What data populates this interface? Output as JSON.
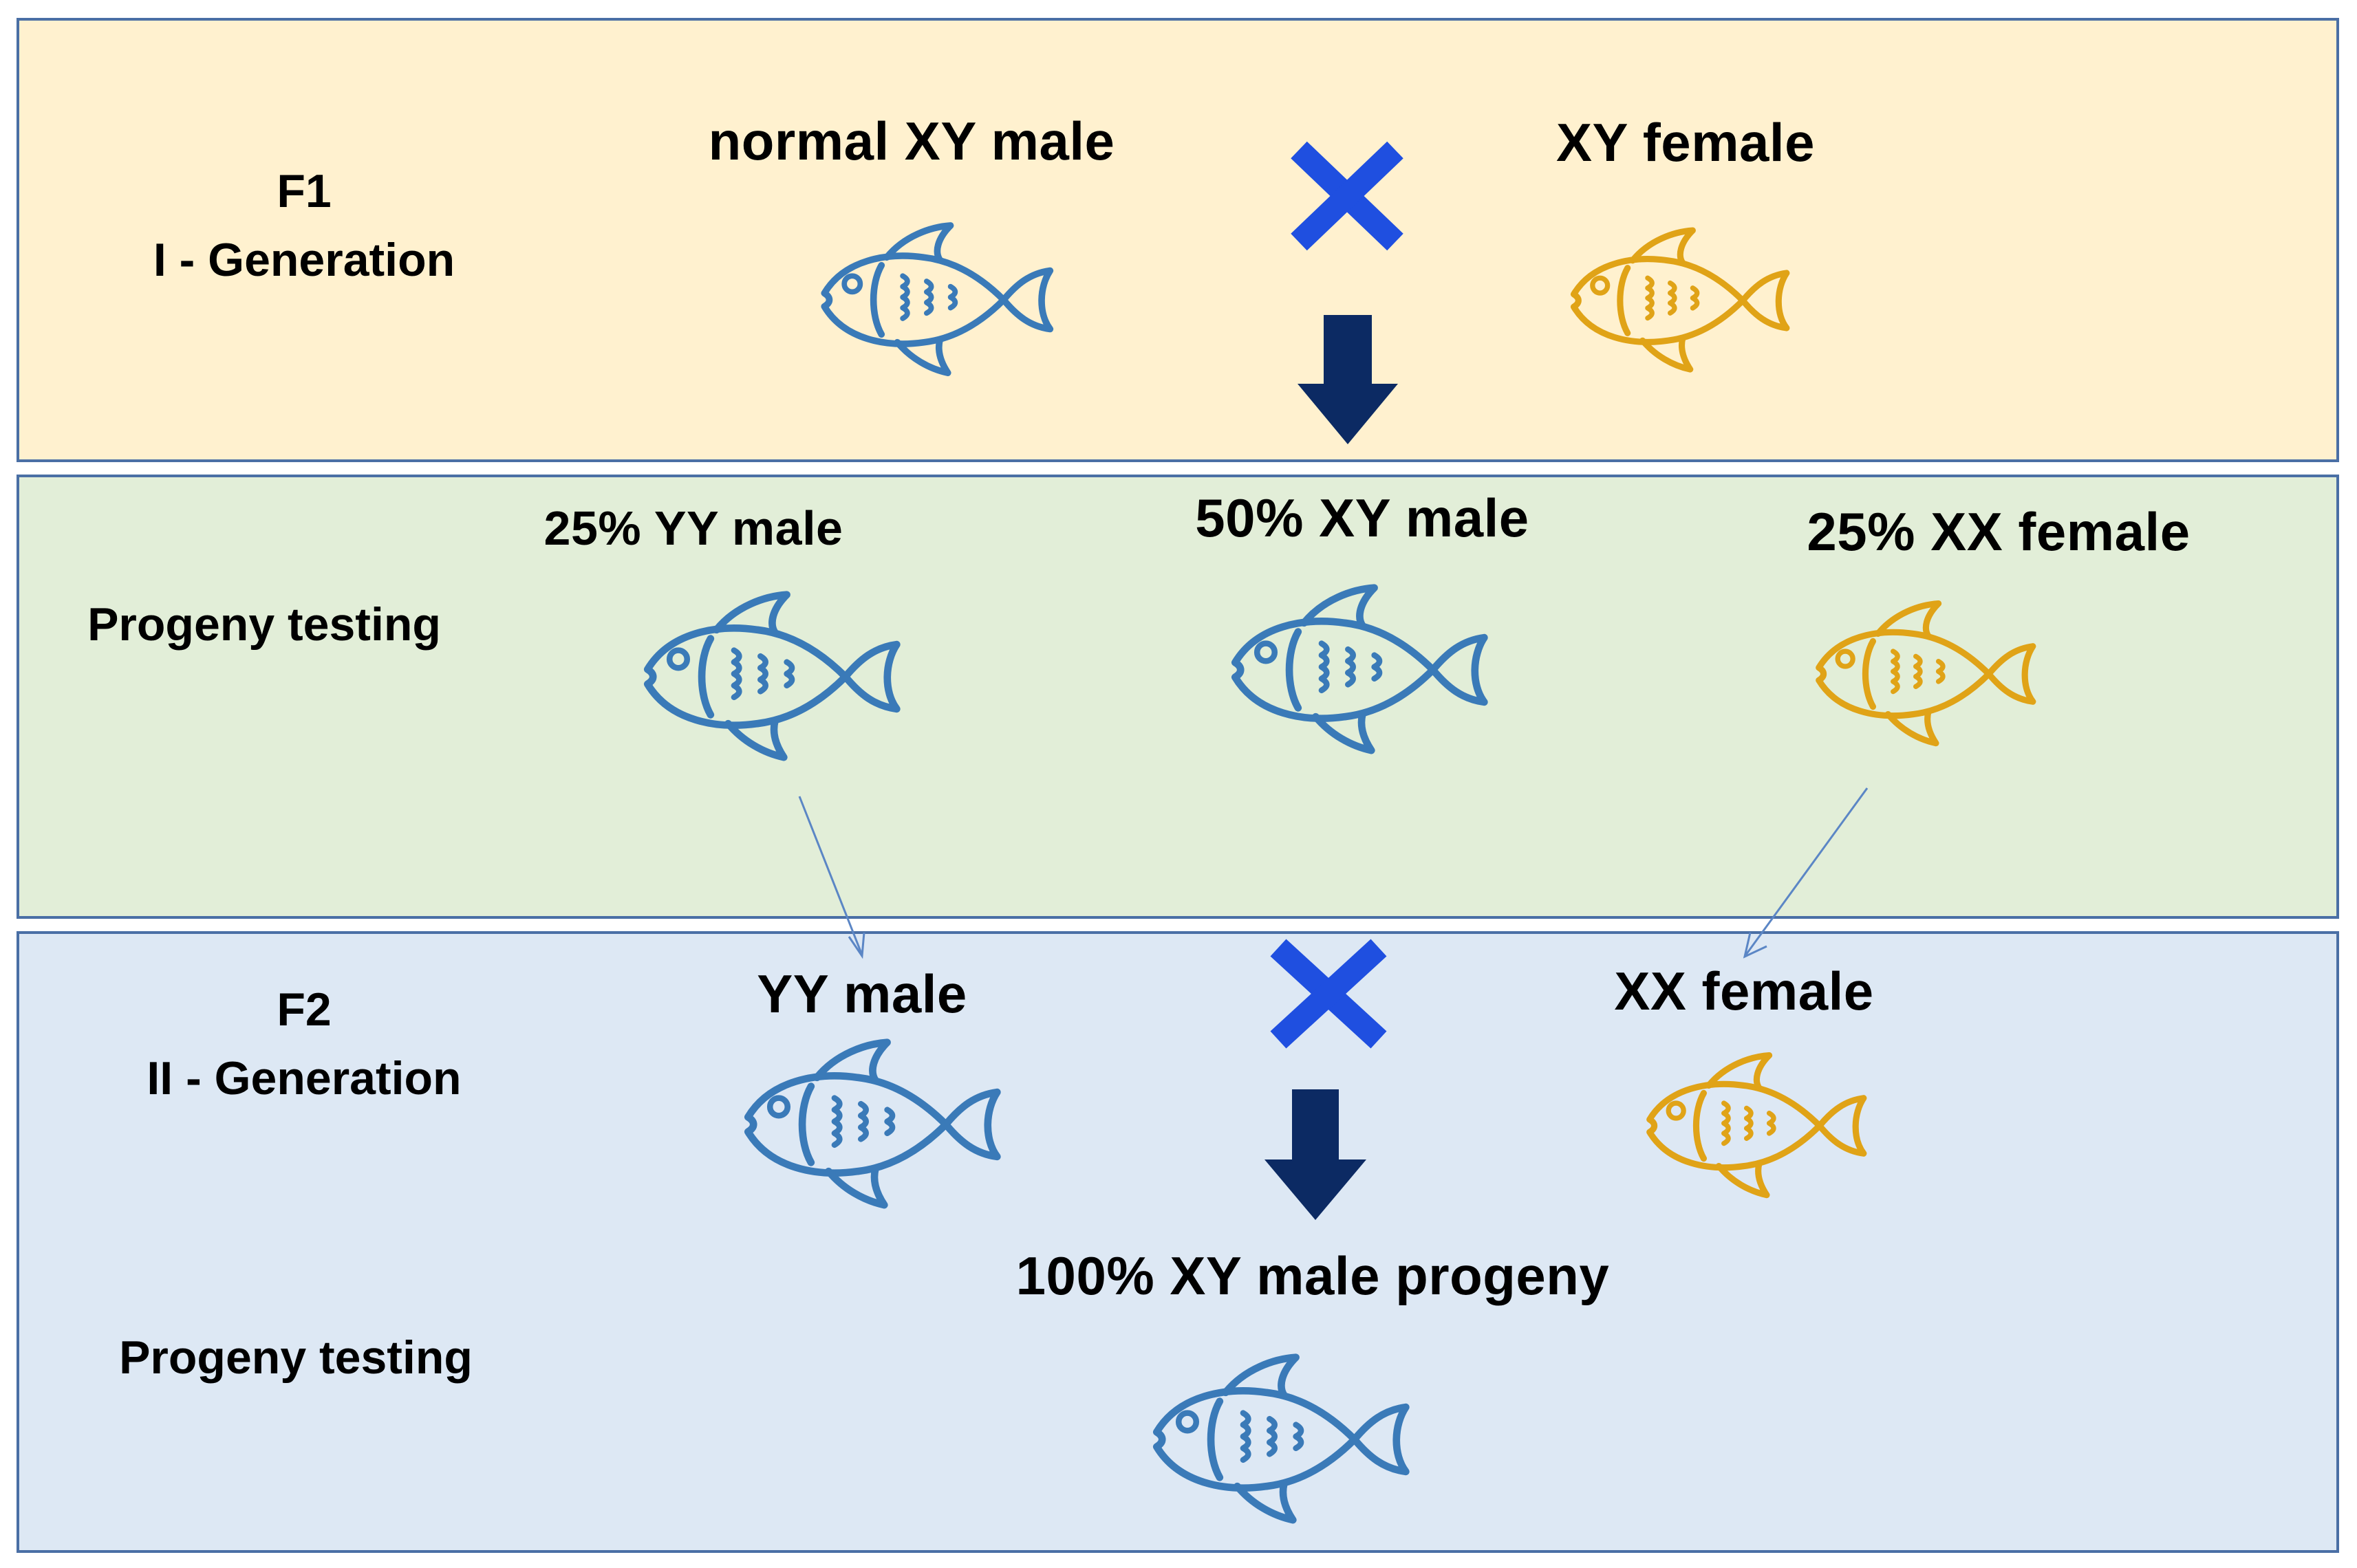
{
  "colors": {
    "male_fish": "#3a7ab8",
    "female_fish": "#e0a317",
    "cross_mark": "#1f4fe0",
    "arrow": "#0c2a63",
    "panel_border": "#4a6fa5"
  },
  "f1": {
    "label_gen": "F1",
    "label_sub": "I - Generation",
    "male_label": "normal XY male",
    "female_label": "XY female",
    "cross_icon": "cross-icon",
    "arrow_icon": "down-arrow-icon"
  },
  "progeny": {
    "label": "Progeny testing",
    "yy_label": "25% YY male",
    "xy_label": "50% XY male",
    "xx_label": "25% XX female"
  },
  "f2": {
    "label_gen": "F2",
    "label_sub": "II - Generation",
    "male_label": "YY male",
    "female_label": "XX female",
    "result_label": "100% XY male progeny",
    "testing_label": "Progeny testing"
  }
}
